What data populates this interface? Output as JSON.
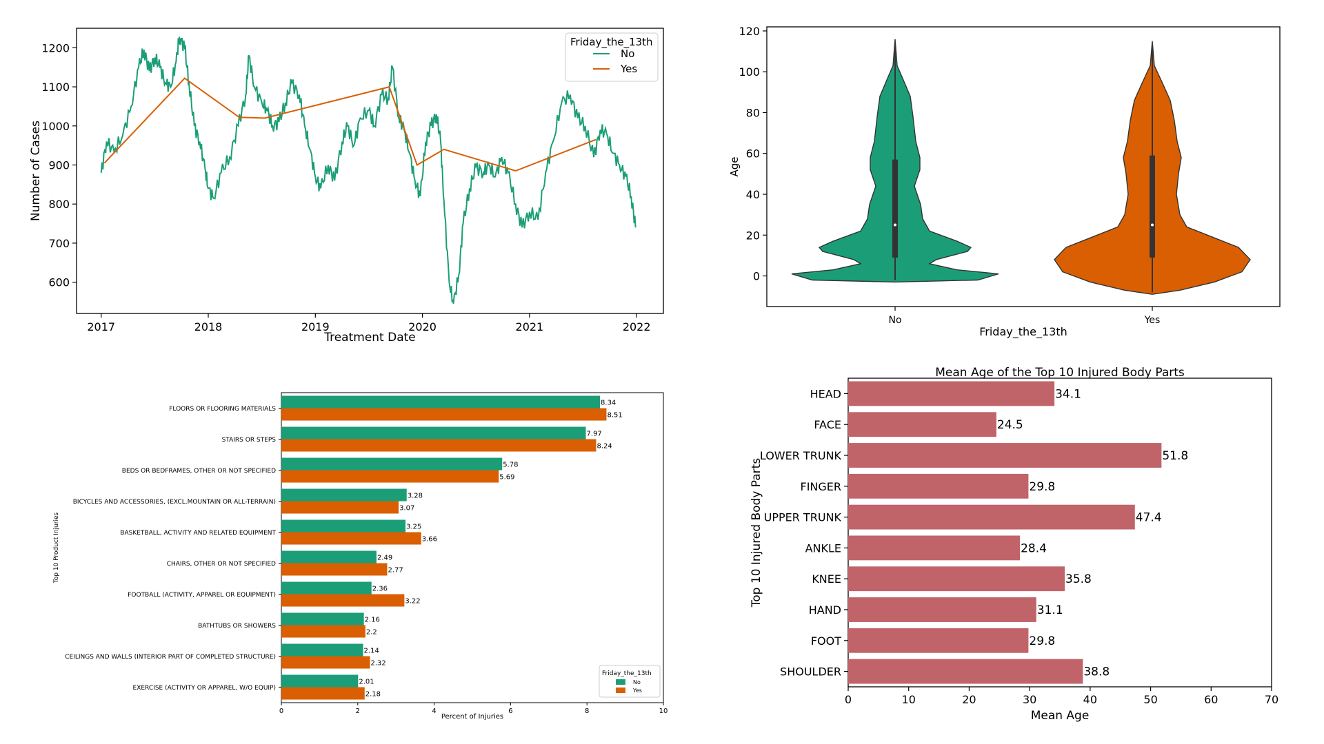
{
  "colors": {
    "no": "#1b9e77",
    "yes": "#d95f02",
    "bar": "#c0646a"
  },
  "chart_data": [
    {
      "type": "line",
      "xlabel": "Treatment Date",
      "ylabel": "Number of Cases",
      "x_ticks": [
        "2017",
        "2018",
        "2019",
        "2020",
        "2021",
        "2022"
      ],
      "y_ticks": [
        600,
        700,
        800,
        900,
        1000,
        1100,
        1200
      ],
      "ylim": [
        520,
        1250
      ],
      "xlim": [
        2016.77,
        2022.25
      ],
      "legend": {
        "title": "Friday_the_13th",
        "position": "top-right",
        "entries": [
          "No",
          "Yes"
        ]
      },
      "series": [
        {
          "name": "No",
          "points": [
            [
              2017.0,
              880
            ],
            [
              2017.05,
              960
            ],
            [
              2017.12,
              935
            ],
            [
              2017.2,
              975
            ],
            [
              2017.28,
              1050
            ],
            [
              2017.35,
              1150
            ],
            [
              2017.4,
              1195
            ],
            [
              2017.45,
              1140
            ],
            [
              2017.5,
              1175
            ],
            [
              2017.55,
              1150
            ],
            [
              2017.6,
              1110
            ],
            [
              2017.65,
              1100
            ],
            [
              2017.7,
              1165
            ],
            [
              2017.73,
              1228
            ],
            [
              2017.78,
              1200
            ],
            [
              2017.82,
              1110
            ],
            [
              2017.87,
              1000
            ],
            [
              2017.92,
              960
            ],
            [
              2017.97,
              890
            ],
            [
              2018.0,
              840
            ],
            [
              2018.05,
              815
            ],
            [
              2018.12,
              880
            ],
            [
              2018.2,
              920
            ],
            [
              2018.28,
              1000
            ],
            [
              2018.35,
              1080
            ],
            [
              2018.38,
              1180
            ],
            [
              2018.43,
              1100
            ],
            [
              2018.5,
              1060
            ],
            [
              2018.55,
              1040
            ],
            [
              2018.6,
              1000
            ],
            [
              2018.66,
              1010
            ],
            [
              2018.72,
              1060
            ],
            [
              2018.78,
              1110
            ],
            [
              2018.85,
              1080
            ],
            [
              2018.9,
              1000
            ],
            [
              2018.95,
              940
            ],
            [
              2019.0,
              870
            ],
            [
              2019.05,
              840
            ],
            [
              2019.12,
              900
            ],
            [
              2019.18,
              860
            ],
            [
              2019.25,
              960
            ],
            [
              2019.3,
              1000
            ],
            [
              2019.36,
              950
            ],
            [
              2019.42,
              1020
            ],
            [
              2019.5,
              1040
            ],
            [
              2019.55,
              1000
            ],
            [
              2019.62,
              1080
            ],
            [
              2019.68,
              1070
            ],
            [
              2019.72,
              1150
            ],
            [
              2019.78,
              1020
            ],
            [
              2019.83,
              990
            ],
            [
              2019.88,
              930
            ],
            [
              2019.93,
              860
            ],
            [
              2019.98,
              820
            ],
            [
              2020.03,
              960
            ],
            [
              2020.08,
              1000
            ],
            [
              2020.13,
              1030
            ],
            [
              2020.17,
              960
            ],
            [
              2020.2,
              810
            ],
            [
              2020.25,
              600
            ],
            [
              2020.29,
              545
            ],
            [
              2020.34,
              620
            ],
            [
              2020.38,
              750
            ],
            [
              2020.44,
              840
            ],
            [
              2020.5,
              895
            ],
            [
              2020.57,
              880
            ],
            [
              2020.62,
              900
            ],
            [
              2020.68,
              870
            ],
            [
              2020.74,
              920
            ],
            [
              2020.8,
              880
            ],
            [
              2020.87,
              800
            ],
            [
              2020.93,
              740
            ],
            [
              2021.0,
              780
            ],
            [
              2021.08,
              760
            ],
            [
              2021.15,
              880
            ],
            [
              2021.22,
              960
            ],
            [
              2021.3,
              1060
            ],
            [
              2021.38,
              1080
            ],
            [
              2021.45,
              1020
            ],
            [
              2021.52,
              1000
            ],
            [
              2021.6,
              920
            ],
            [
              2021.66,
              990
            ],
            [
              2021.72,
              980
            ],
            [
              2021.78,
              930
            ],
            [
              2021.84,
              900
            ],
            [
              2021.9,
              870
            ],
            [
              2021.95,
              820
            ],
            [
              2021.99,
              740
            ]
          ]
        },
        {
          "name": "Yes",
          "points": [
            [
              2017.03,
              905
            ],
            [
              2017.78,
              1122
            ],
            [
              2018.29,
              1022
            ],
            [
              2018.53,
              1020
            ],
            [
              2019.69,
              1100
            ],
            [
              2019.95,
              900
            ],
            [
              2020.2,
              940
            ],
            [
              2020.87,
              885
            ],
            [
              2021.62,
              965
            ]
          ]
        }
      ]
    },
    {
      "type": "violin",
      "xlabel": "Friday_the_13th",
      "ylabel": "Age",
      "categories": [
        "No",
        "Yes"
      ],
      "y_ticks": [
        0,
        20,
        40,
        60,
        80,
        100,
        120
      ],
      "ylim": [
        -15,
        122
      ],
      "stats": [
        {
          "name": "No",
          "median": 25,
          "q1": 9,
          "q3": 57,
          "min": -3,
          "max": 116
        },
        {
          "name": "Yes",
          "median": 25,
          "q1": 9,
          "q3": 59,
          "min": -9,
          "max": 115
        }
      ]
    },
    {
      "type": "bar",
      "orientation": "horizontal",
      "xlabel": "Percent of Injuries",
      "ylabel": "Top 10 Product Injuries",
      "xlim": [
        0,
        10
      ],
      "x_ticks": [
        0,
        2,
        4,
        6,
        8,
        10
      ],
      "categories": [
        "FLOORS OR FLOORING MATERIALS",
        "STAIRS OR STEPS",
        "BEDS OR BEDFRAMES, OTHER OR NOT SPECIFIED",
        "BICYCLES AND ACCESSORIES, (EXCL.MOUNTAIN OR ALL-TERRAIN)",
        "BASKETBALL, ACTIVITY AND RELATED EQUIPMENT",
        "CHAIRS, OTHER OR NOT SPECIFIED",
        "FOOTBALL (ACTIVITY, APPAREL OR EQUIPMENT)",
        "BATHTUBS OR SHOWERS",
        "CEILINGS AND WALLS (INTERIOR PART OF COMPLETED STRUCTURE)",
        "EXERCISE (ACTIVITY OR APPAREL, W/O EQUIP)"
      ],
      "series": [
        {
          "name": "No",
          "values": [
            8.34,
            7.97,
            5.78,
            3.28,
            3.25,
            2.49,
            2.36,
            2.16,
            2.14,
            2.01
          ],
          "labels": [
            "8.34",
            "7.97",
            "5.78",
            "3.28",
            "3.25",
            "2.49",
            "2.36",
            "2.16",
            "2.14",
            "2.01"
          ]
        },
        {
          "name": "Yes",
          "values": [
            8.51,
            8.24,
            5.69,
            3.07,
            3.66,
            2.77,
            3.22,
            2.2,
            2.32,
            2.18
          ],
          "labels": [
            "8.51",
            "8.24",
            "5.69",
            "3.07",
            "3.66",
            "2.77",
            "3.22",
            "2.2",
            "2.32",
            "2.18"
          ]
        }
      ],
      "legend": {
        "title": "Friday_the_13th",
        "position": "bottom-right",
        "entries": [
          "No",
          "Yes"
        ]
      }
    },
    {
      "type": "bar",
      "orientation": "horizontal",
      "title": "Mean Age of the Top 10 Injured Body Parts",
      "xlabel": "Mean Age",
      "ylabel": "Top 10 Injured Body Parts",
      "xlim": [
        0,
        70
      ],
      "x_ticks": [
        0,
        10,
        20,
        30,
        40,
        50,
        60,
        70
      ],
      "categories": [
        "HEAD",
        "FACE",
        "LOWER TRUNK",
        "FINGER",
        "UPPER TRUNK",
        "ANKLE",
        "KNEE",
        "HAND",
        "FOOT",
        "SHOULDER"
      ],
      "values": [
        34.1,
        24.5,
        51.8,
        29.8,
        47.4,
        28.4,
        35.8,
        31.1,
        29.8,
        38.8
      ],
      "labels": [
        "34.1",
        "24.5",
        "51.8",
        "29.8",
        "47.4",
        "28.4",
        "35.8",
        "31.1",
        "29.8",
        "38.8"
      ]
    }
  ]
}
